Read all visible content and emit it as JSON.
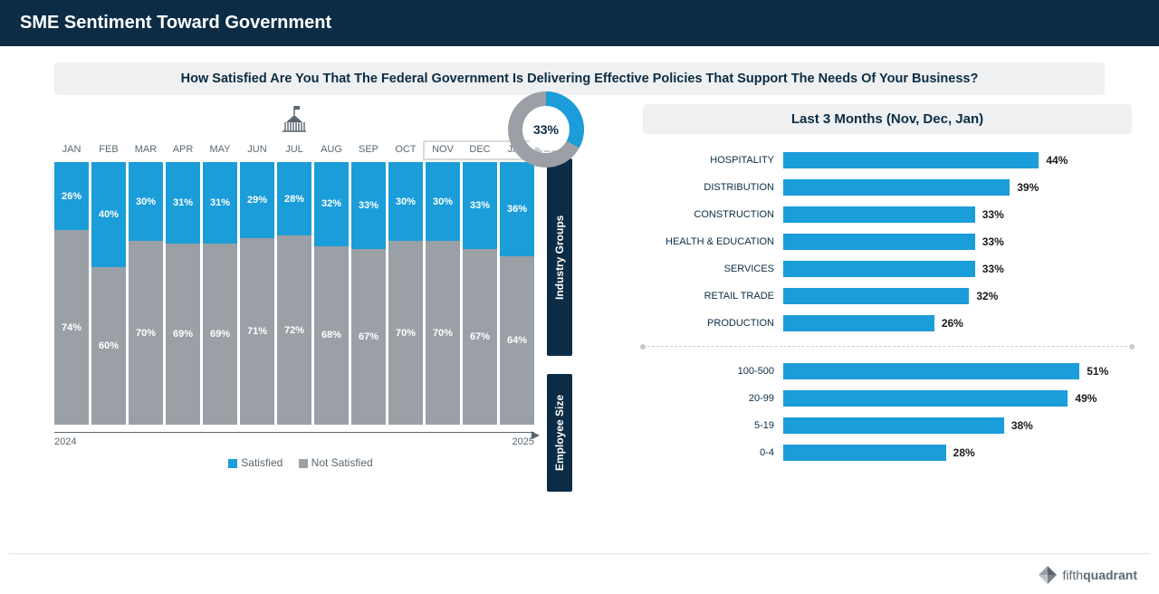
{
  "header_title": "SME Sentiment Toward Government",
  "subtitle": "How Satisfied Are You That The Federal Government Is Delivering Effective Policies That Support The Needs Of Your Business?",
  "colors": {
    "satisfied": "#1b9dd9",
    "not_satisfied": "#9aa0a6",
    "header_bg": "#0b2c44",
    "subtitle_bg": "#eef0f1",
    "text_dark": "#0b2c44"
  },
  "monthly_chart": {
    "months": [
      "JAN",
      "FEB",
      "MAR",
      "APR",
      "MAY",
      "JUN",
      "JUL",
      "AUG",
      "SEP",
      "OCT",
      "NOV",
      "DEC",
      "JAN"
    ],
    "satisfied": [
      26,
      40,
      30,
      31,
      31,
      29,
      28,
      32,
      33,
      30,
      30,
      33,
      36
    ],
    "not_satisfied": [
      74,
      60,
      70,
      69,
      69,
      71,
      72,
      68,
      67,
      70,
      70,
      67,
      64
    ],
    "year_start": "2024",
    "year_end": "2025",
    "legend_satisfied": "Satisfied",
    "legend_not_satisfied": "Not Satisfied",
    "highlight_start_index": 10,
    "highlight_end_index": 12
  },
  "donut": {
    "value": 33,
    "label": "33%"
  },
  "right_title": "Last 3 Months (Nov, Dec, Jan)",
  "industry": {
    "label": "Industry Groups",
    "max": 60,
    "rows": [
      {
        "name": "HOSPITALITY",
        "value": 44
      },
      {
        "name": "DISTRIBUTION",
        "value": 39
      },
      {
        "name": "CONSTRUCTION",
        "value": 33
      },
      {
        "name": "HEALTH & EDUCATION",
        "value": 33
      },
      {
        "name": "SERVICES",
        "value": 33
      },
      {
        "name": "RETAIL TRADE",
        "value": 32
      },
      {
        "name": "PRODUCTION",
        "value": 26
      }
    ]
  },
  "employee": {
    "label": "Employee Size",
    "max": 60,
    "rows": [
      {
        "name": "100-500",
        "value": 51
      },
      {
        "name": "20-99",
        "value": 49
      },
      {
        "name": "5-19",
        "value": 38
      },
      {
        "name": "0-4",
        "value": 28
      }
    ]
  },
  "brand": {
    "prefix": "fifth",
    "suffix": "quadrant"
  }
}
